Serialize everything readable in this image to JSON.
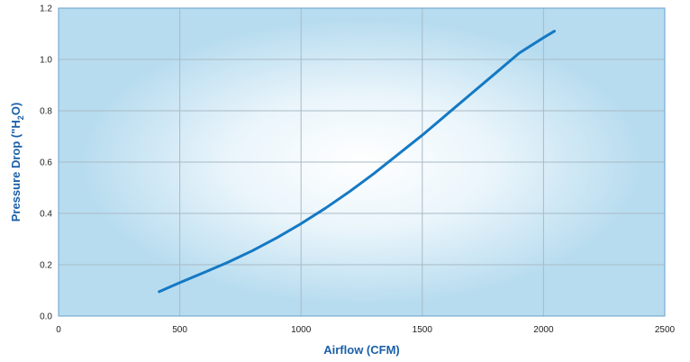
{
  "colors": {
    "line": "#1479c4",
    "axis_title": "#1a5fa8",
    "plot_center": "#ffffff",
    "plot_edge": "#b7dcef",
    "grid": "#a9bac6",
    "frame": "#6a9fcb"
  },
  "chart_data": {
    "type": "line",
    "xlabel": "Airflow (CFM)",
    "ylabel_parts": {
      "main": "Pressure Drop (\"H",
      "sub": "2",
      "end": "O)"
    },
    "xlim": [
      0,
      2500
    ],
    "ylim": [
      0,
      1.2
    ],
    "xticks": [
      0,
      500,
      1000,
      1500,
      2000,
      2500
    ],
    "yticks": [
      "0.0",
      "0.2",
      "0.4",
      "0.6",
      "0.8",
      "1.0",
      "1.2"
    ],
    "grid": true,
    "series": [
      {
        "x": [
          415,
          500,
          600,
          700,
          800,
          900,
          1000,
          1100,
          1200,
          1300,
          1400,
          1500,
          1600,
          1700,
          1800,
          1900,
          2000,
          2045
        ],
        "y": [
          0.095,
          0.13,
          0.17,
          0.21,
          0.255,
          0.305,
          0.36,
          0.42,
          0.485,
          0.555,
          0.63,
          0.705,
          0.785,
          0.865,
          0.945,
          1.025,
          1.085,
          1.11
        ]
      }
    ]
  }
}
